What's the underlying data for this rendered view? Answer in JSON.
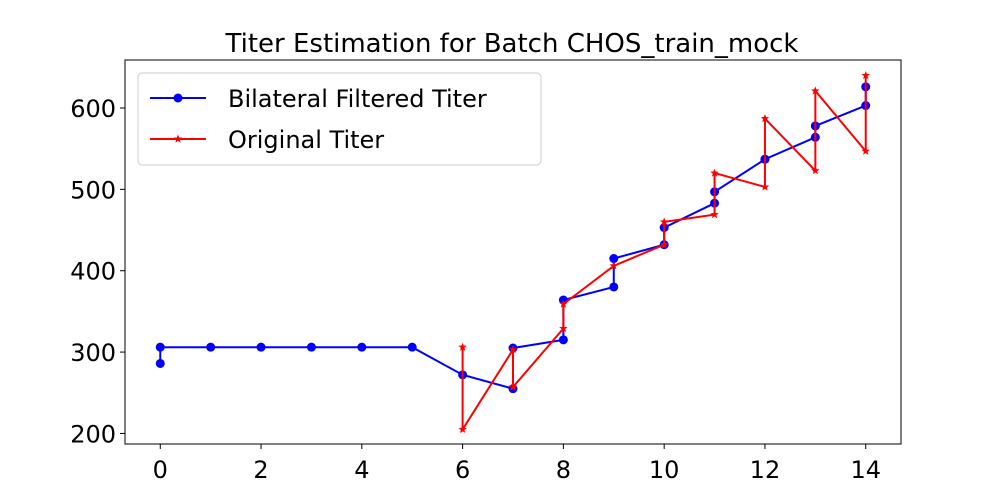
{
  "chart_data": {
    "type": "line",
    "title": "Titer Estimation for Batch CHOS_train_mock",
    "xlabel": "",
    "ylabel": "",
    "xlim": [
      -0.7,
      14.7
    ],
    "ylim": [
      187,
      659
    ],
    "xticks": [
      0,
      2,
      4,
      6,
      8,
      10,
      12,
      14
    ],
    "yticks": [
      200,
      300,
      400,
      500,
      600
    ],
    "grid": false,
    "legend_position": "top-left",
    "series": [
      {
        "name": "Bilateral Filtered Titer",
        "color": "#0000ff",
        "marker": "circle",
        "x": [
          0,
          0,
          1,
          2,
          3,
          4,
          5,
          6,
          7,
          7,
          8,
          8,
          9,
          9,
          10,
          10,
          11,
          11,
          12,
          12,
          13,
          13,
          14,
          14
        ],
        "y": [
          286,
          306,
          306,
          306,
          306,
          306,
          306,
          272,
          255,
          305,
          315,
          364,
          380,
          415,
          432,
          453,
          483,
          497,
          537,
          537,
          564,
          578,
          603,
          626
        ]
      },
      {
        "name": "Original Titer",
        "color": "#ff0000",
        "marker": "star",
        "x": [
          6,
          6,
          7,
          7,
          8,
          8,
          9,
          10,
          10,
          11,
          11,
          12,
          12,
          13,
          13,
          14,
          14
        ],
        "y": [
          306,
          205,
          303,
          257,
          329,
          359,
          406,
          432,
          460,
          469,
          520,
          503,
          587,
          523,
          621,
          547,
          640
        ]
      }
    ]
  }
}
